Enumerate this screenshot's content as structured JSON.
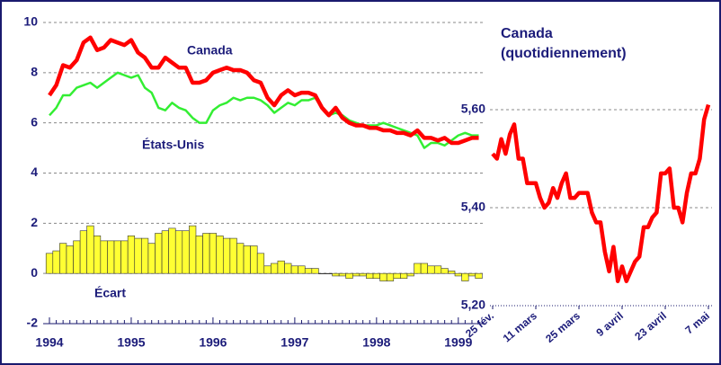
{
  "chart_data": [
    {
      "type": "combo",
      "categories": [
        "1994",
        null,
        null,
        null,
        null,
        null,
        null,
        null,
        null,
        null,
        null,
        null,
        "1995",
        null,
        null,
        null,
        null,
        null,
        null,
        null,
        null,
        null,
        null,
        null,
        "1996",
        null,
        null,
        null,
        null,
        null,
        null,
        null,
        null,
        null,
        null,
        null,
        "1997",
        null,
        null,
        null,
        null,
        null,
        null,
        null,
        null,
        null,
        null,
        null,
        "1998",
        null,
        null,
        null,
        null,
        null,
        null,
        null,
        null,
        null,
        null,
        null,
        "1999",
        null,
        null,
        null
      ],
      "ylim": [
        -2,
        10
      ],
      "yticks": [
        -2,
        0,
        2,
        4,
        6,
        8,
        10
      ],
      "grid": true,
      "series": [
        {
          "name": "Écart",
          "kind": "bar",
          "color": "#ffff33",
          "values": [
            0.8,
            0.9,
            1.2,
            1.1,
            1.3,
            1.7,
            1.9,
            1.5,
            1.3,
            1.3,
            1.3,
            1.3,
            1.5,
            1.4,
            1.4,
            1.2,
            1.6,
            1.7,
            1.8,
            1.7,
            1.7,
            1.9,
            1.5,
            1.6,
            1.6,
            1.5,
            1.4,
            1.4,
            1.2,
            1.1,
            1.1,
            0.8,
            0.3,
            0.4,
            0.5,
            0.4,
            0.3,
            0.3,
            0.2,
            0.2,
            0.0,
            0.0,
            -0.1,
            -0.1,
            -0.2,
            -0.1,
            -0.1,
            -0.2,
            -0.2,
            -0.3,
            -0.3,
            -0.2,
            -0.2,
            -0.1,
            0.4,
            0.4,
            0.3,
            0.3,
            0.2,
            0.1,
            -0.1,
            -0.3,
            -0.1,
            -0.2
          ]
        },
        {
          "name": "États-Unis",
          "kind": "line",
          "color": "#33ee33",
          "values": [
            6.3,
            6.6,
            7.1,
            7.1,
            7.4,
            7.5,
            7.6,
            7.4,
            7.6,
            7.8,
            8.0,
            7.9,
            7.8,
            7.9,
            7.4,
            7.2,
            6.6,
            6.5,
            6.8,
            6.6,
            6.5,
            6.2,
            6.0,
            6.0,
            6.5,
            6.7,
            6.8,
            7.0,
            6.9,
            7.0,
            7.0,
            6.9,
            6.7,
            6.4,
            6.6,
            6.8,
            6.7,
            6.9,
            6.9,
            7.0,
            6.6,
            6.3,
            6.4,
            6.3,
            6.1,
            6.0,
            5.9,
            5.9,
            5.9,
            6.0,
            5.9,
            5.8,
            5.7,
            5.6,
            5.5,
            5.0,
            5.2,
            5.2,
            5.1,
            5.3,
            5.5,
            5.6,
            5.5,
            5.5
          ]
        },
        {
          "name": "Canada",
          "kind": "line",
          "color": "#ff0000",
          "values": [
            7.1,
            7.5,
            8.3,
            8.2,
            8.5,
            9.2,
            9.4,
            8.9,
            9.0,
            9.3,
            9.2,
            9.1,
            9.3,
            8.8,
            8.6,
            8.2,
            8.2,
            8.6,
            8.4,
            8.2,
            8.2,
            7.6,
            7.6,
            7.7,
            8.0,
            8.1,
            8.2,
            8.1,
            8.1,
            8.0,
            7.7,
            7.6,
            7.0,
            6.7,
            7.1,
            7.3,
            7.1,
            7.2,
            7.2,
            7.1,
            6.6,
            6.3,
            6.6,
            6.2,
            6.0,
            5.9,
            5.9,
            5.8,
            5.8,
            5.7,
            5.7,
            5.6,
            5.6,
            5.5,
            5.7,
            5.4,
            5.4,
            5.3,
            5.4,
            5.2,
            5.2,
            5.3,
            5.4,
            5.4
          ]
        }
      ]
    },
    {
      "type": "line",
      "title": "Canada",
      "subtitle": "(quotidiennement)",
      "categories": [
        "25 fév.",
        null,
        null,
        null,
        null,
        null,
        null,
        null,
        null,
        null,
        "11 mars",
        null,
        null,
        null,
        null,
        null,
        null,
        null,
        null,
        null,
        "25 mars",
        null,
        null,
        null,
        null,
        null,
        null,
        null,
        null,
        null,
        "9 avril",
        null,
        null,
        null,
        null,
        null,
        null,
        null,
        null,
        null,
        "23 avril",
        null,
        null,
        null,
        null,
        null,
        null,
        null,
        null,
        null,
        "7 mai"
      ],
      "ylim": [
        5.2,
        5.62
      ],
      "yticks": [
        {
          "value": 5.2,
          "label": "5,20"
        },
        {
          "value": 5.4,
          "label": "5,40"
        },
        {
          "value": 5.6,
          "label": "5,60"
        }
      ],
      "grid": true,
      "series": [
        {
          "name": "Canada",
          "color": "#ff0000",
          "values": [
            5.51,
            5.5,
            5.54,
            5.51,
            5.55,
            5.57,
            5.5,
            5.5,
            5.45,
            5.45,
            5.45,
            5.42,
            5.4,
            5.41,
            5.44,
            5.42,
            5.45,
            5.47,
            5.42,
            5.42,
            5.43,
            5.43,
            5.43,
            5.39,
            5.37,
            5.37,
            5.31,
            5.27,
            5.32,
            5.25,
            5.28,
            5.25,
            5.27,
            5.29,
            5.3,
            5.36,
            5.36,
            5.38,
            5.39,
            5.47,
            5.47,
            5.48,
            5.4,
            5.4,
            5.37,
            5.43,
            5.47,
            5.47,
            5.5,
            5.58,
            5.61
          ]
        }
      ]
    }
  ]
}
